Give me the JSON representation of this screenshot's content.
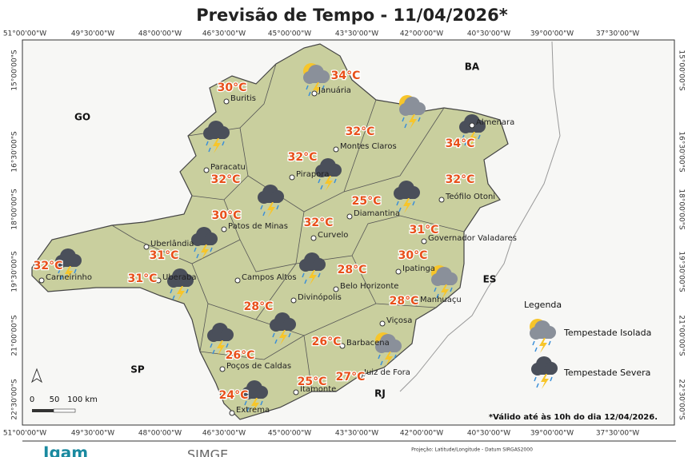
{
  "title": "Previsão de Tempo - 11/04/2026*",
  "longitudes": [
    "51°00'00\"W",
    "49°30'00\"W",
    "48°00'00\"W",
    "46°30'00\"W",
    "45°00'00\"W",
    "43°30'00\"W",
    "42°00'00\"W",
    "40°30'00\"W",
    "39°00'00\"W",
    "37°30'00\"W"
  ],
  "latitudes": [
    "15°00'00\"S",
    "16°30'00\"S",
    "18°00'00\"S",
    "19°30'00\"S",
    "21°00'00\"S",
    "22°30'00\"S"
  ],
  "states": [
    "GO",
    "BA",
    "ES",
    "SP",
    "RJ"
  ],
  "cities": [
    {
      "name": "Buritis",
      "temp": "30°C"
    },
    {
      "name": "Januária",
      "temp": "34°C"
    },
    {
      "name": "Almenara",
      "temp": "34°C"
    },
    {
      "name": "Montes Claros",
      "temp": "32°C"
    },
    {
      "name": "Pirapora",
      "temp": "32°C"
    },
    {
      "name": "Paracatu",
      "temp": "32°C"
    },
    {
      "name": "Teófilo Otoni",
      "temp": "32°C"
    },
    {
      "name": "Diamantina",
      "temp": "25°C"
    },
    {
      "name": "Patos de Minas",
      "temp": "30°C"
    },
    {
      "name": "Curvelo",
      "temp": "32°C"
    },
    {
      "name": "Governador Valadares",
      "temp": "31°C"
    },
    {
      "name": "Uberlândia",
      "temp": "31°C"
    },
    {
      "name": "Carneirinho",
      "temp": "32°C"
    },
    {
      "name": "Uberaba",
      "temp": "31°C"
    },
    {
      "name": "Ipatinga",
      "temp": "30°C"
    },
    {
      "name": "Belo Horizonte",
      "temp": "28°C"
    },
    {
      "name": "Campos Altos"
    },
    {
      "name": "Divinópolis",
      "temp": "28°C"
    },
    {
      "name": "Manhuaçu",
      "temp": "28°C"
    },
    {
      "name": "Viçosa"
    },
    {
      "name": "Barbacena",
      "temp": "26°C"
    },
    {
      "name": "Poços de Caldas",
      "temp": "26°C"
    },
    {
      "name": "Juiz de Fora",
      "temp": "27°C"
    },
    {
      "name": "Itamonte",
      "temp": "25°C"
    },
    {
      "name": "Extrema",
      "temp": "24°C"
    }
  ],
  "legend": {
    "title": "Legenda",
    "items": [
      "Tempestade Isolada",
      "Tempestade Severa"
    ]
  },
  "scale": [
    "0",
    "50",
    "100 km"
  ],
  "note": "*Válido até às 10h do dia 12/04/2026.",
  "footer": {
    "logo_left": "Igam",
    "logo_right": "SIMGE",
    "projection": "Projeção: Latitude/Longitude - Datum SIRGAS2000"
  }
}
